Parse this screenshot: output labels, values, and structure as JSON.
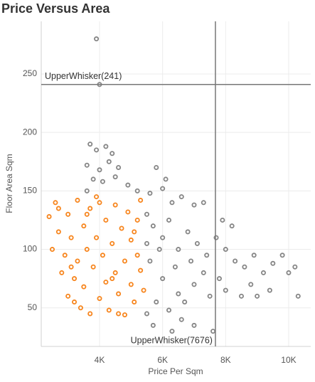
{
  "chart_data": {
    "type": "scatter",
    "title": "Price Versus Area",
    "x_label": "Price Per Sqm",
    "y_label": "Floor Area Sqm",
    "xlim": [
      2150,
      10700
    ],
    "ylim": [
      17,
      295
    ],
    "xticks": [
      {
        "value": 4000,
        "label": "4K"
      },
      {
        "value": 6000,
        "label": "6K"
      },
      {
        "value": 8000,
        "label": "8K"
      },
      {
        "value": 10000,
        "label": "10K"
      }
    ],
    "yticks": [
      50,
      100,
      150,
      200,
      250
    ],
    "grid": true,
    "reference_lines": [
      {
        "axis": "y",
        "value": 241,
        "label": "UpperWhisker(241)"
      },
      {
        "axis": "x",
        "value": 7676,
        "label": "UpperWhisker(7676)"
      }
    ],
    "series": [
      {
        "color": "#f7851d",
        "x": [
          2400,
          2500,
          2600,
          2700,
          2800,
          2900,
          3000,
          3000,
          3100,
          3200,
          3300,
          3300,
          3400,
          3500,
          3500,
          3600,
          3700,
          3700,
          3800,
          3900,
          4000,
          4000,
          4100,
          4200,
          4200,
          4300,
          4400,
          4500,
          4500,
          4600,
          4700,
          4800,
          4800,
          4900,
          5000,
          5000,
          5100,
          5200,
          5200,
          5300,
          5300,
          5400,
          3200,
          2700,
          3900,
          4600,
          3100,
          4400,
          5100,
          3600
        ],
        "values": [
          128,
          100,
          140,
          115,
          80,
          95,
          130,
          60,
          110,
          75,
          142,
          90,
          50,
          120,
          68,
          100,
          135,
          45,
          85,
          110,
          58,
          140,
          95,
          125,
          72,
          48,
          105,
          138,
          80,
          62,
          118,
          90,
          44,
          132,
          70,
          108,
          55,
          125,
          95,
          82,
          142,
          65,
          55,
          135,
          145,
          45,
          85,
          75,
          115,
          130
        ]
      },
      {
        "color": "#858585",
        "x": [
          3900,
          4000,
          3700,
          3900,
          4200,
          4400,
          3600,
          4000,
          4300,
          4600,
          3800,
          4100,
          4500,
          4900,
          5200,
          3600,
          5600,
          6000,
          6300,
          6600,
          7000,
          7300,
          6100,
          5800,
          5500,
          5700,
          6000,
          6200,
          6500,
          6800,
          7100,
          7400,
          7700,
          8000,
          8300,
          8600,
          8900,
          9200,
          9500,
          9800,
          10000,
          10300,
          10200,
          9000,
          8500,
          8000,
          7500,
          7000,
          6500,
          6000,
          5600,
          5800,
          6200,
          6600,
          7000,
          5500,
          5700,
          6300,
          7600,
          6700,
          7300,
          7800,
          8200,
          7900,
          8800,
          9400,
          5900,
          6400,
          5500,
          6900
        ],
        "values": [
          280,
          241,
          190,
          185,
          188,
          182,
          172,
          168,
          175,
          170,
          160,
          158,
          162,
          155,
          150,
          150,
          148,
          152,
          140,
          145,
          138,
          140,
          160,
          170,
          130,
          120,
          110,
          125,
          100,
          115,
          105,
          95,
          110,
          100,
          90,
          85,
          95,
          80,
          88,
          95,
          80,
          60,
          85,
          60,
          60,
          65,
          60,
          70,
          62,
          75,
          90,
          55,
          48,
          40,
          35,
          45,
          35,
          30,
          30,
          55,
          80,
          75,
          120,
          125,
          70,
          65,
          100,
          85,
          105,
          90
        ]
      }
    ]
  }
}
